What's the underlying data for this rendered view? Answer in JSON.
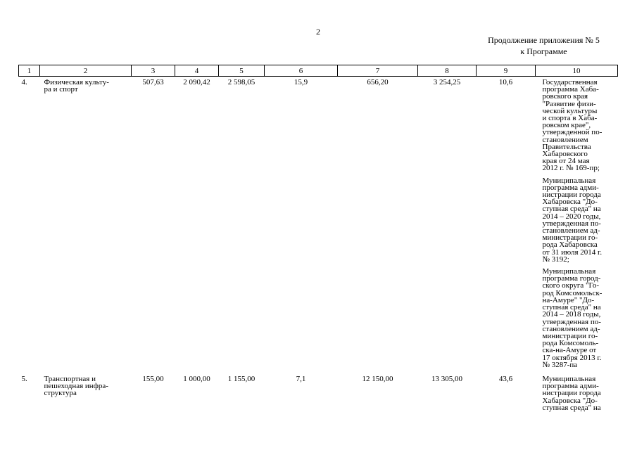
{
  "page_number": "2",
  "appendix": {
    "line1": "Продолжение приложения № 5",
    "line2": "к Программе"
  },
  "columns": [
    "1",
    "2",
    "3",
    "4",
    "5",
    "6",
    "7",
    "8",
    "9",
    "10"
  ],
  "rows": [
    {
      "num": "4.",
      "name": "Физическая культу-\nра и спорт",
      "c3": "507,63",
      "c4": "2 090,42",
      "c5": "2 598,05",
      "c6": "15,9",
      "c7": "656,20",
      "c8": "3 254,25",
      "c9": "10,6",
      "programs": [
        "Государственная\nпрограмма Хаба-\nровского края\n\"Развитие физи-\nческой культуры\nи спорта в Хаба-\nровском крае\",\nутвержденной по-\nстановлением\nПравительства\nХабаровского\nкрая от 24 мая\n2012 г. № 169-пр;",
        "Муниципальная\nпрограмма адми-\nнистрации города\nХабаровска \"До-\nступная среда\" на\n2014 – 2020 годы,\nутвержденная по-\nстановлением ад-\nминистрации го-\nрода Хабаровска\nот 31 июля 2014 г.\n№ 3192;",
        "Муниципальная\nпрограмма город-\nского округа \"Го-\nрод Комсомольск-\nна-Амуре\" \"До-\nступная среда\" на\n2014 – 2018 годы,\nутвержденная по-\nстановлением ад-\nминистрации го-\nрода Комсомоль-\nска-на-Амуре от\n17 октября 2013 г.\n№ 3287-па"
      ]
    },
    {
      "num": "5.",
      "name": "Транспортная и\nпешеходная инфра-\nструктура",
      "c3": "155,00",
      "c4": "1 000,00",
      "c5": "1 155,00",
      "c6": "7,1",
      "c7": "12 150,00",
      "c8": "13 305,00",
      "c9": "43,6",
      "programs": [
        "Муниципальная\nпрограмма адми-\nнистрации города\nХабаровска \"До-\nступная среда\" на"
      ]
    }
  ]
}
